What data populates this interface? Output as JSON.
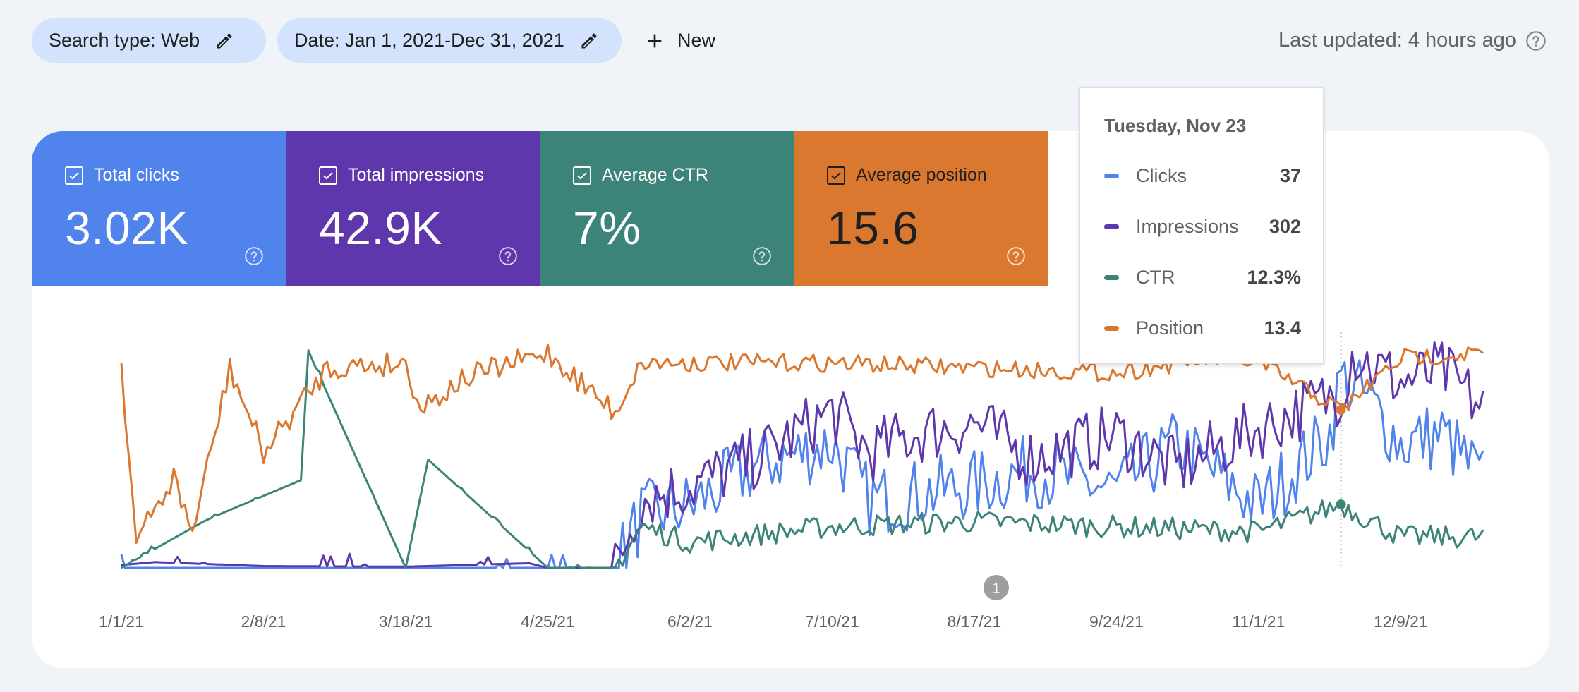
{
  "toolbar": {
    "search_type": "Search type: Web",
    "date_range": "Date: Jan 1, 2021-Dec 31, 2021",
    "new_label": "New",
    "last_updated": "Last updated: 4 hours ago"
  },
  "metrics": [
    {
      "label": "Total clicks",
      "value": "3.02K",
      "checked": true,
      "color": "#5183ec"
    },
    {
      "label": "Total impressions",
      "value": "42.9K",
      "checked": true,
      "color": "#5e37ad"
    },
    {
      "label": "Average CTR",
      "value": "7%",
      "checked": true,
      "color": "#3c8479"
    },
    {
      "label": "Average position",
      "value": "15.6",
      "checked": true,
      "color": "#da782f"
    }
  ],
  "tooltip": {
    "date": "Tuesday, Nov 23",
    "rows": [
      {
        "label": "Clicks",
        "value": "37",
        "color": "#5183ec"
      },
      {
        "label": "Impressions",
        "value": "302",
        "color": "#5e37ad"
      },
      {
        "label": "CTR",
        "value": "12.3%",
        "color": "#3c8479"
      },
      {
        "label": "Position",
        "value": "13.4",
        "color": "#da782f"
      }
    ]
  },
  "annotation_marker": "1",
  "icons": [
    "pencil-icon",
    "plus-icon",
    "help-icon",
    "checkbox-checked-icon"
  ],
  "chart_data": {
    "type": "line",
    "x_ticks": [
      "1/1/21",
      "2/8/21",
      "3/18/21",
      "4/25/21",
      "6/2/21",
      "7/10/21",
      "8/17/21",
      "9/24/21",
      "11/1/21",
      "12/9/21"
    ],
    "x_range": [
      "2021-01-01",
      "2021-12-31"
    ],
    "grid": false,
    "legend": "none",
    "hover_date": "2021-11-23",
    "annotation_date": "2021-08-17",
    "series": [
      {
        "name": "Clicks",
        "color": "#5183ec",
        "ylim": [
          0,
          45
        ],
        "points": [
          [
            "1/1",
            0
          ],
          [
            "2/8",
            0
          ],
          [
            "3/18",
            0
          ],
          [
            "4/25",
            0
          ],
          [
            "5/13",
            0
          ],
          [
            "5/20",
            10
          ],
          [
            "6/2",
            12
          ],
          [
            "6/20",
            20
          ],
          [
            "7/10",
            24
          ],
          [
            "7/20",
            13
          ],
          [
            "8/17",
            16
          ],
          [
            "9/1",
            19
          ],
          [
            "9/24",
            15
          ],
          [
            "10/10",
            24
          ],
          [
            "11/1",
            12
          ],
          [
            "11/20",
            26
          ],
          [
            "11/23",
            37
          ],
          [
            "12/1",
            32
          ],
          [
            "12/9",
            24
          ],
          [
            "12/20",
            26
          ],
          [
            "12/31",
            17
          ]
        ]
      },
      {
        "name": "Impressions",
        "color": "#5e37ad",
        "ylim": [
          0,
          400
        ],
        "points": [
          [
            "1/1",
            5
          ],
          [
            "1/10",
            10
          ],
          [
            "2/8",
            3
          ],
          [
            "3/18",
            2
          ],
          [
            "4/20",
            8
          ],
          [
            "4/25",
            0
          ],
          [
            "5/13",
            0
          ],
          [
            "5/20",
            120
          ],
          [
            "6/2",
            140
          ],
          [
            "6/20",
            190
          ],
          [
            "7/10",
            270
          ],
          [
            "7/20",
            200
          ],
          [
            "8/1",
            230
          ],
          [
            "8/17",
            250
          ],
          [
            "9/1",
            190
          ],
          [
            "9/24",
            230
          ],
          [
            "10/10",
            170
          ],
          [
            "11/1",
            240
          ],
          [
            "11/23",
            302
          ],
          [
            "11/26",
            370
          ],
          [
            "12/9",
            320
          ],
          [
            "12/20",
            340
          ],
          [
            "12/31",
            275
          ]
        ]
      },
      {
        "name": "CTR",
        "color": "#3c8479",
        "ylim": [
          0,
          45
        ],
        "points": [
          [
            "1/1",
            0
          ],
          [
            "1/23",
            9
          ],
          [
            "1/26",
            10
          ],
          [
            "2/18",
            17
          ],
          [
            "2/20",
            42
          ],
          [
            "3/18",
            0
          ],
          [
            "3/24",
            21
          ],
          [
            "4/25",
            0
          ],
          [
            "5/13",
            0
          ],
          [
            "5/20",
            8
          ],
          [
            "6/2",
            5
          ],
          [
            "7/10",
            8
          ],
          [
            "8/17",
            9
          ],
          [
            "9/24",
            8
          ],
          [
            "11/1",
            7
          ],
          [
            "11/23",
            12.3
          ],
          [
            "12/9",
            6
          ],
          [
            "12/31",
            6
          ]
        ]
      },
      {
        "name": "Position",
        "color": "#da782f",
        "ylim": [
          0,
          45
        ],
        "y_inverted": true,
        "points": [
          [
            "1/1",
            4
          ],
          [
            "1/5",
            40
          ],
          [
            "1/15",
            27
          ],
          [
            "1/20",
            38
          ],
          [
            "1/30",
            5
          ],
          [
            "2/8",
            22
          ],
          [
            "2/25",
            5
          ],
          [
            "3/18",
            4
          ],
          [
            "3/22",
            13
          ],
          [
            "4/3",
            7
          ],
          [
            "4/25",
            2
          ],
          [
            "5/13",
            14
          ],
          [
            "5/20",
            4
          ],
          [
            "6/2",
            4
          ],
          [
            "7/10",
            4
          ],
          [
            "8/17",
            5
          ],
          [
            "9/24",
            6
          ],
          [
            "10/20",
            3
          ],
          [
            "11/1",
            4
          ],
          [
            "11/23",
            13.4
          ],
          [
            "12/9",
            3
          ],
          [
            "12/31",
            2
          ]
        ]
      }
    ]
  }
}
